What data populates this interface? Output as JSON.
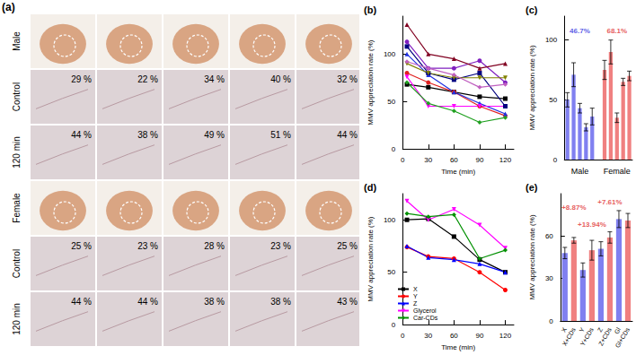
{
  "panel_a": {
    "title": "(a)",
    "groups": [
      {
        "name": "Male",
        "rows": [
          {
            "label": "Control",
            "values": [
              "29 %",
              "22 %",
              "34 %",
              "40 %",
              "32 %"
            ]
          },
          {
            "label": "120 min",
            "values": [
              "44 %",
              "38 %",
              "49 %",
              "51 %",
              "44 %"
            ]
          }
        ]
      },
      {
        "name": "Female",
        "rows": [
          {
            "label": "Control",
            "values": [
              "25 %",
              "23 %",
              "28 %",
              "23 %",
              "25 %"
            ]
          },
          {
            "label": "120 min",
            "values": [
              "44 %",
              "44 %",
              "38 %",
              "38 %",
              "43 %"
            ]
          }
        ]
      }
    ]
  },
  "chart_data": [
    {
      "type": "line",
      "title": "(b)",
      "x_label": "Time (min)",
      "y_label": "MMV appreciation rate (%)",
      "x": [
        5,
        30,
        60,
        90,
        120
      ],
      "xlim": [
        0,
        130
      ],
      "xticks": [
        0,
        30,
        60,
        90,
        120
      ],
      "ylim": [
        0,
        140
      ],
      "yticks": [
        0,
        50,
        100
      ],
      "series": [
        {
          "color": "#000000",
          "marker": "square",
          "values": [
            68,
            65,
            60,
            55,
            53
          ]
        },
        {
          "color": "#e02020",
          "marker": "circle",
          "values": [
            80,
            70,
            60,
            45,
            35
          ]
        },
        {
          "color": "#2030e0",
          "marker": "triangle",
          "values": [
            100,
            78,
            60,
            48,
            37
          ]
        },
        {
          "color": "#ff00ff",
          "marker": "triangle-down",
          "values": [
            76,
            45,
            45,
            45,
            45
          ]
        },
        {
          "color": "#20a020",
          "marker": "diamond",
          "values": [
            70,
            48,
            40,
            28,
            33
          ]
        },
        {
          "color": "#000080",
          "marker": "square",
          "values": [
            108,
            80,
            73,
            80,
            45
          ]
        },
        {
          "color": "#8020c0",
          "marker": "circle",
          "values": [
            113,
            85,
            85,
            93,
            70
          ]
        },
        {
          "color": "#800020",
          "marker": "triangle",
          "values": [
            131,
            100,
            95,
            85,
            90
          ]
        },
        {
          "color": "#808000",
          "marker": "triangle-down",
          "values": [
            90,
            80,
            75,
            75,
            75
          ]
        },
        {
          "color": "#c060c0",
          "marker": "diamond",
          "values": [
            92,
            85,
            78,
            65,
            68
          ]
        }
      ]
    },
    {
      "type": "bar",
      "title": "(c)",
      "y_label": "MMV appreciation rate (%)",
      "categories": [
        null,
        null,
        "Male",
        null,
        null,
        null,
        null,
        null,
        "Female",
        null,
        null
      ],
      "values": [
        50,
        71,
        43,
        27,
        36,
        null,
        75,
        90,
        35,
        65,
        70
      ],
      "errors": [
        6,
        10,
        4,
        3,
        7,
        null,
        8,
        10,
        4,
        3,
        4
      ],
      "colors": [
        "#8080f0",
        "#8080f0",
        "#8080f0",
        "#8080f0",
        "#8080f0",
        "#ffffff",
        "#f08080",
        "#f08080",
        "#f08080",
        "#f08080",
        "#f08080"
      ],
      "ylim": [
        0,
        120
      ],
      "yticks": [
        0,
        50,
        100
      ],
      "annotations": [
        {
          "text": "46.7%",
          "at": "Male",
          "y": 108,
          "color": "#3030e0"
        },
        {
          "text": "68.1%",
          "at": "Female",
          "y": 108,
          "color": "#e03030"
        }
      ]
    },
    {
      "type": "line",
      "title": "(d)",
      "x_label": "Time (min)",
      "y_label": "MMV appreciation rate (%)",
      "x": [
        5,
        30,
        60,
        90,
        120
      ],
      "xlim": [
        0,
        130
      ],
      "xticks": [
        0,
        30,
        60,
        90,
        120
      ],
      "ylim": [
        0,
        125
      ],
      "yticks": [
        0,
        50,
        100
      ],
      "legend": "lower left",
      "series": [
        {
          "name": "X",
          "color": "#000000",
          "marker": "square",
          "values": [
            100,
            101,
            84,
            62,
            50
          ]
        },
        {
          "name": "Y",
          "color": "#ff0000",
          "marker": "circle",
          "values": [
            74,
            65,
            63,
            50,
            33
          ]
        },
        {
          "name": "Z",
          "color": "#0000ff",
          "marker": "triangle",
          "values": [
            75,
            64,
            62,
            58,
            50
          ]
        },
        {
          "name": "Glycerol",
          "color": "#ff00ff",
          "marker": "triangle-down",
          "values": [
            118,
            100,
            110,
            95,
            73
          ]
        },
        {
          "name": "Car-CDs",
          "color": "#009000",
          "marker": "diamond",
          "values": [
            106,
            103,
            105,
            63,
            71
          ]
        }
      ]
    },
    {
      "type": "bar",
      "title": "(e)",
      "y_label": "MMV appreciation rate (%)",
      "categories": [
        "X",
        "X+CDs",
        "Y",
        "Y+CDs",
        "Z",
        "Z+CDs",
        "Gl",
        "Gl+CDs"
      ],
      "values": [
        48,
        57,
        36,
        50,
        51,
        59,
        72,
        71
      ],
      "errors": [
        4,
        2,
        5,
        7,
        5,
        4,
        6,
        5
      ],
      "colors": [
        "#8080f0",
        "#f08080",
        "#8080f0",
        "#f08080",
        "#8080f0",
        "#f08080",
        "#8080f0",
        "#f08080"
      ],
      "ylim": [
        0,
        90
      ],
      "yticks": [
        0,
        30,
        60
      ],
      "annotations": [
        {
          "text": "+8.87%",
          "at": "X+CDs",
          "y": 80,
          "color": "#e03030"
        },
        {
          "text": "+13.94%",
          "at": "Y+CDs",
          "y": 68,
          "color": "#e03030"
        },
        {
          "text": "+7.61%",
          "at": "Z+CDs",
          "y": 84,
          "color": "#e03030"
        }
      ]
    }
  ]
}
